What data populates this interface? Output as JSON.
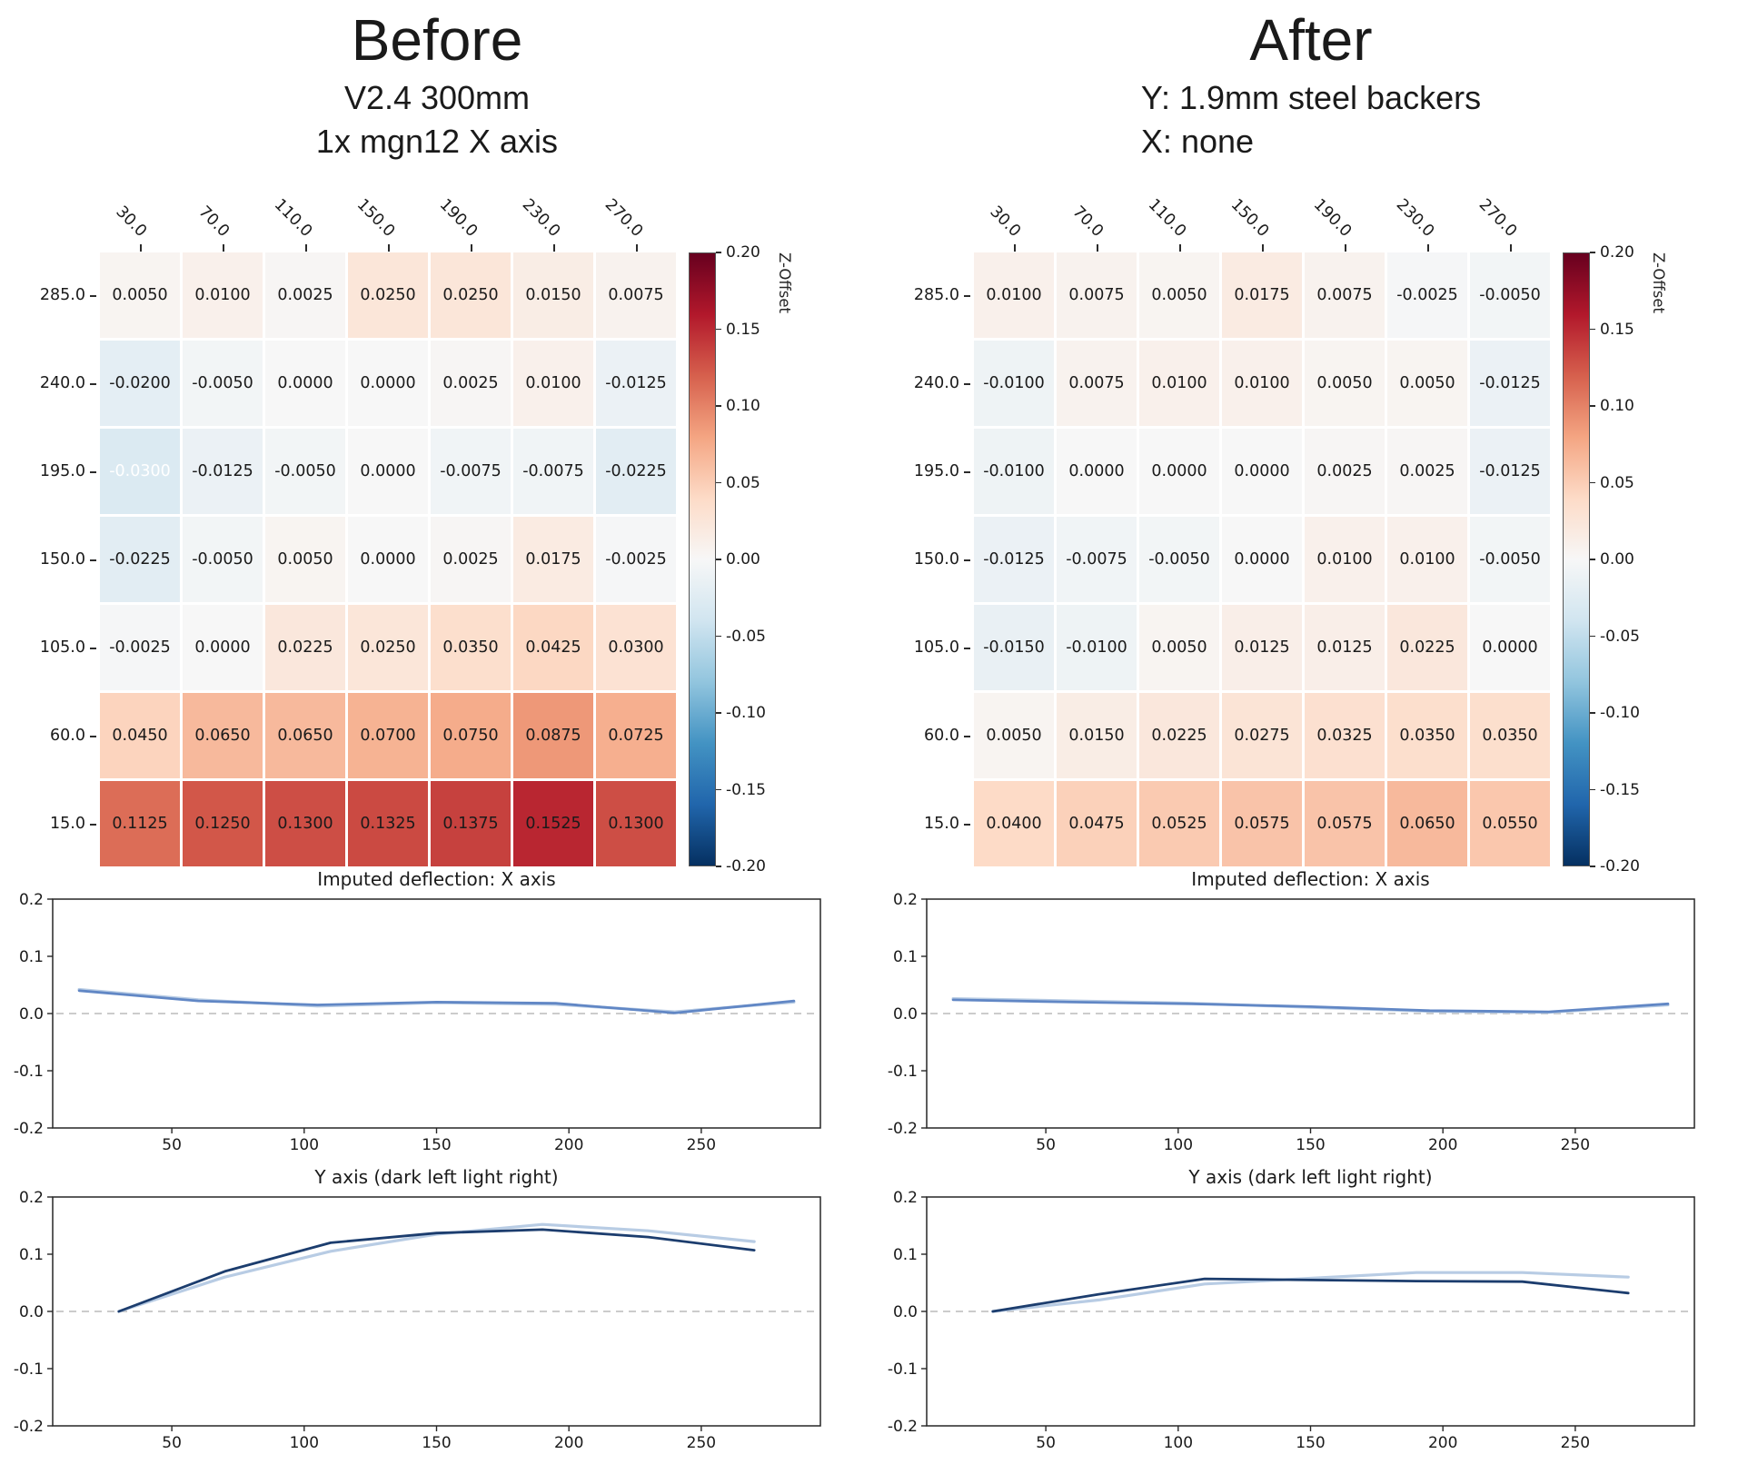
{
  "colorbar": {
    "label": "Z-Offset",
    "tick_labels": [
      "0.20",
      "0.15",
      "0.10",
      "0.05",
      "0.00",
      "-0.05",
      "-0.10",
      "-0.15",
      "-0.20"
    ],
    "colormap_stops_top_to_bottom": [
      "#67001f",
      "#b2182b",
      "#d6604d",
      "#f4a582",
      "#fddbc7",
      "#f7f7f7",
      "#d1e5f0",
      "#92c5de",
      "#4393c3",
      "#2166ac",
      "#053061"
    ]
  },
  "colors": {
    "cell_text": "#1a1a1a",
    "cell_text_inverted": "#ffffff",
    "zero_dash": "#cccccc",
    "axis": "#262626",
    "line_medium_blue": "#6187c5",
    "line_dark_navy": "#1c3d6e",
    "line_light_blue": "#b8cce4"
  },
  "chart_data": [
    {
      "id": "before-heatmap",
      "type": "heatmap",
      "title": "Before",
      "subtitle": [
        "V2.4 300mm",
        "1x mgn12 X axis"
      ],
      "colormap": "RdBu_r",
      "vmin": -0.2,
      "vmax": 0.2,
      "colorbar_label": "Z-Offset",
      "x": [
        30.0,
        70.0,
        110.0,
        150.0,
        190.0,
        230.0,
        270.0
      ],
      "y": [
        285.0,
        240.0,
        195.0,
        150.0,
        105.0,
        60.0,
        15.0
      ],
      "values": [
        [
          0.005,
          0.01,
          0.0025,
          0.025,
          0.025,
          0.015,
          0.0075
        ],
        [
          -0.02,
          -0.005,
          0.0,
          0.0,
          0.0025,
          0.01,
          -0.0125
        ],
        [
          -0.03,
          -0.0125,
          -0.005,
          0.0,
          -0.0075,
          -0.0075,
          -0.0225
        ],
        [
          -0.0225,
          -0.005,
          0.005,
          0.0,
          0.0025,
          0.0175,
          -0.0025
        ],
        [
          -0.0025,
          0.0,
          0.0225,
          0.025,
          0.035,
          0.0425,
          0.03
        ],
        [
          0.045,
          0.065,
          0.065,
          0.07,
          0.075,
          0.0875,
          0.0725
        ],
        [
          0.1125,
          0.125,
          0.13,
          0.1325,
          0.1375,
          0.1525,
          0.13
        ]
      ],
      "white_text_cells": [
        [
          2,
          0
        ]
      ]
    },
    {
      "id": "after-heatmap",
      "type": "heatmap",
      "title": "After",
      "subtitle": [
        "Y: 1.9mm steel backers",
        "X: none"
      ],
      "colormap": "RdBu_r",
      "vmin": -0.2,
      "vmax": 0.2,
      "colorbar_label": "Z-Offset",
      "x": [
        30.0,
        70.0,
        110.0,
        150.0,
        190.0,
        230.0,
        270.0
      ],
      "y": [
        285.0,
        240.0,
        195.0,
        150.0,
        105.0,
        60.0,
        15.0
      ],
      "values": [
        [
          0.01,
          0.0075,
          0.005,
          0.0175,
          0.0075,
          -0.0025,
          -0.005
        ],
        [
          -0.01,
          0.0075,
          0.01,
          0.01,
          0.005,
          0.005,
          -0.0125
        ],
        [
          -0.01,
          0.0,
          0.0,
          0.0,
          0.0025,
          0.0025,
          -0.0125
        ],
        [
          -0.0125,
          -0.0075,
          -0.005,
          0.0,
          0.01,
          0.01,
          -0.005
        ],
        [
          -0.015,
          -0.01,
          0.005,
          0.0125,
          0.0125,
          0.0225,
          0.0
        ],
        [
          0.005,
          0.015,
          0.0225,
          0.0275,
          0.0325,
          0.035,
          0.035
        ],
        [
          0.04,
          0.0475,
          0.0525,
          0.0575,
          0.0575,
          0.065,
          0.055
        ]
      ],
      "white_text_cells": []
    },
    {
      "id": "before-x-deflection",
      "type": "line",
      "title": "Imputed deflection: X axis",
      "x": [
        15,
        60,
        105,
        150,
        195,
        240,
        285
      ],
      "series": [
        {
          "name": "light",
          "color": "#b8cce4",
          "values": [
            0.042,
            0.024,
            0.013,
            0.019,
            0.016,
            0.003,
            0.02
          ]
        },
        {
          "name": "dark",
          "color": "#6187c5",
          "values": [
            0.04,
            0.022,
            0.015,
            0.02,
            0.018,
            0.001,
            0.022
          ]
        }
      ],
      "xlim": [
        5,
        295
      ],
      "ylim": [
        -0.2,
        0.2
      ],
      "xticks": [
        50,
        100,
        150,
        200,
        250
      ],
      "ytick_labels": [
        "0.2",
        "0.1",
        "0.0",
        "-0.1",
        "-0.2"
      ],
      "ytick_values": [
        0.2,
        0.1,
        0.0,
        -0.1,
        -0.2
      ],
      "zero_line": true
    },
    {
      "id": "before-y-deflection",
      "type": "line",
      "title": "Y axis (dark left light right)",
      "x": [
        30,
        70,
        110,
        150,
        190,
        230,
        270
      ],
      "series": [
        {
          "name": "light",
          "color": "#b8cce4",
          "values": [
            0.0,
            0.06,
            0.105,
            0.135,
            0.152,
            0.141,
            0.122
          ]
        },
        {
          "name": "dark",
          "color": "#1c3d6e",
          "values": [
            0.0,
            0.07,
            0.12,
            0.137,
            0.143,
            0.13,
            0.107
          ]
        }
      ],
      "xlim": [
        5,
        295
      ],
      "ylim": [
        -0.2,
        0.2
      ],
      "xticks": [
        50,
        100,
        150,
        200,
        250
      ],
      "ytick_labels": [
        "0.2",
        "0.1",
        "0.0",
        "-0.1",
        "-0.2"
      ],
      "ytick_values": [
        0.2,
        0.1,
        0.0,
        -0.1,
        -0.2
      ],
      "zero_line": true
    },
    {
      "id": "after-x-deflection",
      "type": "line",
      "title": "Imputed deflection: X axis",
      "x": [
        15,
        60,
        105,
        150,
        195,
        240,
        285
      ],
      "series": [
        {
          "name": "light",
          "color": "#b8cce4",
          "values": [
            0.026,
            0.022,
            0.018,
            0.011,
            0.004,
            0.002,
            0.015
          ]
        },
        {
          "name": "dark",
          "color": "#6187c5",
          "values": [
            0.024,
            0.02,
            0.017,
            0.012,
            0.005,
            0.003,
            0.017
          ]
        }
      ],
      "xlim": [
        5,
        295
      ],
      "ylim": [
        -0.2,
        0.2
      ],
      "xticks": [
        50,
        100,
        150,
        200,
        250
      ],
      "ytick_labels": [
        "0.2",
        "0.1",
        "0.0",
        "-0.1",
        "-0.2"
      ],
      "ytick_values": [
        0.2,
        0.1,
        0.0,
        -0.1,
        -0.2
      ],
      "zero_line": true
    },
    {
      "id": "after-y-deflection",
      "type": "line",
      "title": "Y axis (dark left light right)",
      "x": [
        30,
        70,
        110,
        150,
        190,
        230,
        270
      ],
      "series": [
        {
          "name": "light",
          "color": "#b8cce4",
          "values": [
            0.0,
            0.02,
            0.048,
            0.058,
            0.068,
            0.068,
            0.06
          ]
        },
        {
          "name": "dark",
          "color": "#1c3d6e",
          "values": [
            0.0,
            0.03,
            0.057,
            0.055,
            0.053,
            0.052,
            0.032
          ]
        }
      ],
      "xlim": [
        5,
        295
      ],
      "ylim": [
        -0.2,
        0.2
      ],
      "xticks": [
        50,
        100,
        150,
        200,
        250
      ],
      "ytick_labels": [
        "0.2",
        "0.1",
        "0.0",
        "-0.1",
        "-0.2"
      ],
      "ytick_values": [
        0.2,
        0.1,
        0.0,
        -0.1,
        -0.2
      ],
      "zero_line": true
    }
  ]
}
